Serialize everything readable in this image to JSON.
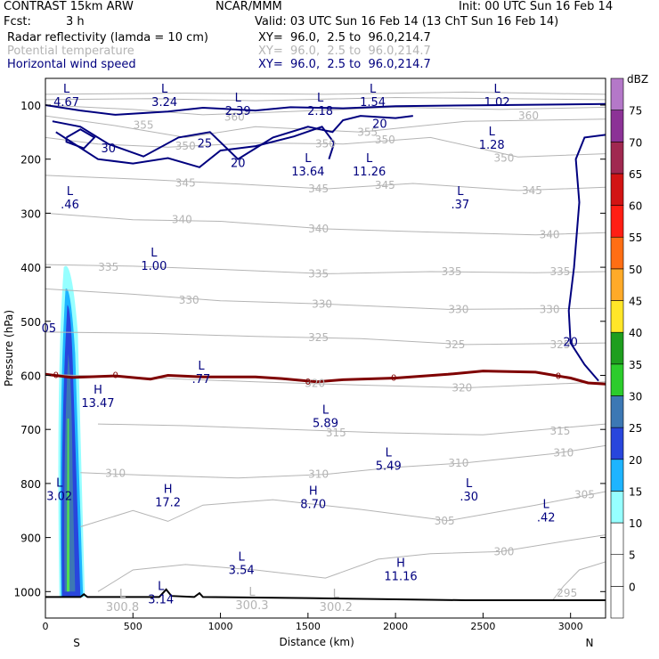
{
  "header": {
    "title": "CONTRAST 15km ARW",
    "org": "NCAR/MMM",
    "init": "Init: 00 UTC Sun 16 Feb 14",
    "fcst_label": "Fcst:",
    "fcst_value": "3 h",
    "valid": "Valid: 03 UTC Sun 16 Feb 14 (13 ChT Sun 16 Feb 14)",
    "fields": [
      {
        "name": "Radar reflectivity (lamda = 10 cm)",
        "xy": "XY=  96.0,  2.5 to  96.0,214.7",
        "color": "#000000"
      },
      {
        "name": "Potential temperature",
        "xy": "XY=  96.0,  2.5 to  96.0,214.7",
        "color": "#b4b4b4"
      },
      {
        "name": "Horizontal wind speed",
        "xy": "XY=  96.0,  2.5 to  96.0,214.7",
        "color": "#00007f"
      }
    ]
  },
  "chart_data": {
    "type": "cross-section",
    "xlabel": "Distance (km)",
    "ylabel": "Pressure (hPa)",
    "xlim": [
      0,
      3200
    ],
    "ylim": [
      1050,
      70
    ],
    "x_ticks": [
      0,
      500,
      1000,
      1500,
      2000,
      2500,
      3000
    ],
    "y_ticks": [
      100,
      200,
      300,
      400,
      500,
      600,
      700,
      800,
      900,
      1000
    ],
    "x_end_labels": {
      "left": "S",
      "right": "N"
    },
    "colorbar": {
      "unit": "dBZ",
      "levels": [
        "0",
        "5",
        "10",
        "15",
        "20",
        "25",
        "30",
        "35",
        "40",
        "45",
        "50",
        "55",
        "60",
        "65",
        "70",
        "75"
      ],
      "colors": [
        "#ffffff",
        "#ffffff",
        "#96ffff",
        "#1eb4ff",
        "#2846dc",
        "#3c78b4",
        "#2ccc2c",
        "#1e9e1e",
        "#ffe628",
        "#ffaa28",
        "#ff6e14",
        "#ff1e14",
        "#d21414",
        "#a02850",
        "#8c3296",
        "#b478c8"
      ]
    },
    "theta_contour_labels": [
      {
        "text": "360",
        "x": 1080,
        "p": 122
      },
      {
        "text": "360",
        "x": 2760,
        "p": 120
      },
      {
        "text": "355",
        "x": 1840,
        "p": 150
      },
      {
        "text": "355",
        "x": 560,
        "p": 137
      },
      {
        "text": "350",
        "x": 800,
        "p": 176
      },
      {
        "text": "350",
        "x": 1600,
        "p": 172
      },
      {
        "text": "350",
        "x": 1940,
        "p": 164
      },
      {
        "text": "350",
        "x": 2620,
        "p": 198
      },
      {
        "text": "345",
        "x": 800,
        "p": 244
      },
      {
        "text": "345",
        "x": 1560,
        "p": 255
      },
      {
        "text": "345",
        "x": 1940,
        "p": 248
      },
      {
        "text": "345",
        "x": 2780,
        "p": 258
      },
      {
        "text": "340",
        "x": 780,
        "p": 312
      },
      {
        "text": "340",
        "x": 1560,
        "p": 329
      },
      {
        "text": "340",
        "x": 2880,
        "p": 340
      },
      {
        "text": "335",
        "x": 360,
        "p": 400
      },
      {
        "text": "335",
        "x": 1560,
        "p": 412
      },
      {
        "text": "335",
        "x": 2320,
        "p": 408
      },
      {
        "text": "335",
        "x": 2940,
        "p": 408
      },
      {
        "text": "330",
        "x": 820,
        "p": 461
      },
      {
        "text": "330",
        "x": 1580,
        "p": 468
      },
      {
        "text": "330",
        "x": 2360,
        "p": 478
      },
      {
        "text": "330",
        "x": 2880,
        "p": 478
      },
      {
        "text": "325",
        "x": 1560,
        "p": 530
      },
      {
        "text": "325",
        "x": 2340,
        "p": 543
      },
      {
        "text": "325",
        "x": 2940,
        "p": 543
      },
      {
        "text": "320",
        "x": 1540,
        "p": 615
      },
      {
        "text": "320",
        "x": 2380,
        "p": 623
      },
      {
        "text": "315",
        "x": 1660,
        "p": 706
      },
      {
        "text": "315",
        "x": 2940,
        "p": 703
      },
      {
        "text": "310",
        "x": 400,
        "p": 781
      },
      {
        "text": "310",
        "x": 1560,
        "p": 783
      },
      {
        "text": "310",
        "x": 2360,
        "p": 762
      },
      {
        "text": "310",
        "x": 2960,
        "p": 743
      },
      {
        "text": "305",
        "x": 2280,
        "p": 869
      },
      {
        "text": "305",
        "x": 3080,
        "p": 821
      },
      {
        "text": "300",
        "x": 2620,
        "p": 926
      },
      {
        "text": "295",
        "x": 2980,
        "p": 1003
      }
    ],
    "wind_contour_labels": [
      {
        "text": "30",
        "x": 360,
        "p": 179
      },
      {
        "text": "25",
        "x": 910,
        "p": 170
      },
      {
        "text": "20",
        "x": 1100,
        "p": 206
      },
      {
        "text": "20",
        "x": 1910,
        "p": 134
      },
      {
        "text": "20",
        "x": 3000,
        "p": 537
      },
      {
        "text": "05",
        "x": 20,
        "p": 512
      }
    ],
    "freezing_level_labels": [
      {
        "text": "0",
        "x": 60,
        "p": 600
      },
      {
        "text": "0",
        "x": 400,
        "p": 600
      },
      {
        "text": "0",
        "x": 1500,
        "p": 612
      },
      {
        "text": "0",
        "x": 1990,
        "p": 605
      },
      {
        "text": "0",
        "x": 2930,
        "p": 602
      }
    ],
    "extrema": [
      {
        "type": "L",
        "value": "4.67",
        "x": 120,
        "p": 82
      },
      {
        "type": "L",
        "value": "3.24",
        "x": 680,
        "p": 82
      },
      {
        "type": "L",
        "value": "2.39",
        "x": 1100,
        "p": 98
      },
      {
        "type": "L",
        "value": "2.18",
        "x": 1570,
        "p": 98
      },
      {
        "type": "L",
        "value": "1.54",
        "x": 1870,
        "p": 82
      },
      {
        "type": "L",
        "value": "1.02",
        "x": 2580,
        "p": 82
      },
      {
        "type": "L",
        "value": "1.28",
        "x": 2550,
        "p": 161
      },
      {
        "type": "L",
        "value": "13.64",
        "x": 1500,
        "p": 210
      },
      {
        "type": "L",
        "value": "11.26",
        "x": 1850,
        "p": 210
      },
      {
        "type": "L",
        "value": ".46",
        "x": 140,
        "p": 271
      },
      {
        "type": "L",
        "value": ".37",
        "x": 2370,
        "p": 271
      },
      {
        "type": "L",
        "value": "1.00",
        "x": 620,
        "p": 385
      },
      {
        "type": "L",
        "value": ".77",
        "x": 890,
        "p": 594
      },
      {
        "type": "H",
        "value": "13.47",
        "x": 300,
        "p": 639
      },
      {
        "type": "L",
        "value": "5.89",
        "x": 1600,
        "p": 676
      },
      {
        "type": "L",
        "value": "5.49",
        "x": 1960,
        "p": 755
      },
      {
        "type": "L",
        "value": "3.02",
        "x": 80,
        "p": 811
      },
      {
        "type": "H",
        "value": "17.2",
        "x": 700,
        "p": 822
      },
      {
        "type": "H",
        "value": "8.70",
        "x": 1530,
        "p": 826
      },
      {
        "type": "L",
        "value": ".30",
        "x": 2420,
        "p": 812
      },
      {
        "type": "L",
        "value": ".42",
        "x": 2860,
        "p": 850
      },
      {
        "type": "L",
        "value": "3.54",
        "x": 1120,
        "p": 948
      },
      {
        "type": "H",
        "value": "11.16",
        "x": 2030,
        "p": 959
      },
      {
        "type": "L",
        "value": "3.14",
        "x": 660,
        "p": 1002
      },
      {
        "type": "L",
        "value": "300.8",
        "x": 440,
        "p": 1016,
        "gray": true
      },
      {
        "type": "L",
        "value": "300.3",
        "x": 1180,
        "p": 1013,
        "gray": true
      },
      {
        "type": "L",
        "value": "300.2",
        "x": 1660,
        "p": 1016,
        "gray": true
      }
    ]
  }
}
